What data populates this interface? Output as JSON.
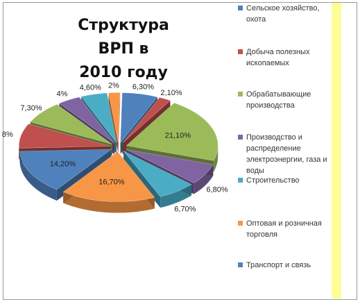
{
  "chart_data": {
    "type": "pie",
    "title": "Структура ВРП в 2010 году",
    "title_lines": [
      "Структура ВРП в",
      "2010 году"
    ],
    "variant": "exploded-3d",
    "slices": [
      {
        "name": "Сельское хозяйство, охота",
        "value": 6.3,
        "label": "6,30%",
        "color": "#4f81bd"
      },
      {
        "name": "Добыча полезных ископаемых",
        "value": 2.1,
        "label": "2,10%",
        "color": "#c0504d"
      },
      {
        "name": "Обрабатывающие производства",
        "value": 21.1,
        "label": "21,10%",
        "color": "#9bbb59"
      },
      {
        "name": "Производство и распределение электроэнергии, газа и воды",
        "value": 6.8,
        "label": "6,80%",
        "color": "#8064a2"
      },
      {
        "name": "Строительство",
        "value": 6.7,
        "label": "6,70%",
        "color": "#4bacc6"
      },
      {
        "name": "Оптовая и розничная торговля",
        "value": 16.7,
        "label": "16,70%",
        "color": "#f79646"
      },
      {
        "name": "Транспорт и связь",
        "value": 14.2,
        "label": "14,20%",
        "color": "#4f81bd"
      },
      {
        "name": "",
        "value": 8.0,
        "label": "8%",
        "color": "#c0504d"
      },
      {
        "name": "",
        "value": 7.3,
        "label": "7,30%",
        "color": "#9bbb59"
      },
      {
        "name": "",
        "value": 4.0,
        "label": "4%",
        "color": "#8064a2"
      },
      {
        "name": "",
        "value": 4.6,
        "label": "4,60%",
        "color": "#4bacc6"
      },
      {
        "name": "",
        "value": 2.0,
        "label": "2%",
        "color": "#f79646"
      }
    ],
    "legend": [
      {
        "label": "Сельское хозяйство, охота",
        "color": "#4f81bd"
      },
      {
        "label": "Добыча полезных ископаемых",
        "color": "#c0504d"
      },
      {
        "label": "Обрабатывающие производства",
        "color": "#9bbb59"
      },
      {
        "label": "Производство и распределение электроэнергии, газа и воды",
        "color": "#8064a2"
      },
      {
        "label": "Строительство",
        "color": "#4bacc6"
      },
      {
        "label": "Оптовая и розничная торговля",
        "color": "#f79646"
      },
      {
        "label": "Транспорт и связь",
        "color": "#4f81bd"
      }
    ],
    "legend_position": "right"
  }
}
